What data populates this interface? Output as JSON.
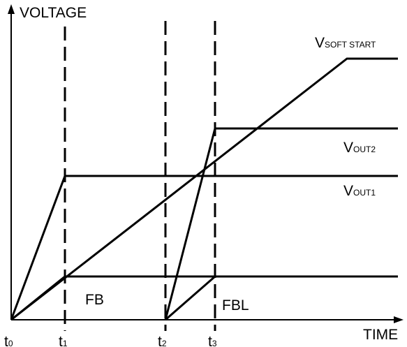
{
  "axes": {
    "y_label": "VOLTAGE",
    "x_label": "TIME"
  },
  "time_markers": [
    {
      "base": "t",
      "sub": "0"
    },
    {
      "base": "t",
      "sub": "1"
    },
    {
      "base": "t",
      "sub": "2"
    },
    {
      "base": "t",
      "sub": "3"
    }
  ],
  "signals": [
    {
      "base": "V",
      "sub": "SOFT START"
    },
    {
      "base": "V",
      "sub": "OUT2"
    },
    {
      "base": "V",
      "sub": "OUT1"
    }
  ],
  "regions": [
    "FB",
    "FBL"
  ]
}
